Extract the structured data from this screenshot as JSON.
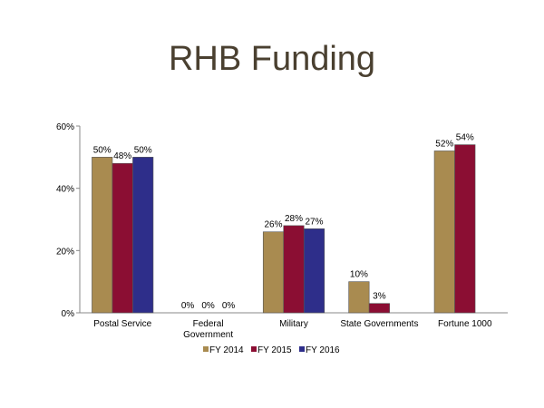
{
  "chart_data": {
    "type": "bar",
    "title": "RHB Funding",
    "xlabel": "",
    "ylabel": "",
    "ylim": [
      0,
      60
    ],
    "yticks": [
      "0%",
      "20%",
      "40%",
      "60%"
    ],
    "ytick_values": [
      0,
      20,
      40,
      60
    ],
    "categories": [
      [
        "Postal Service"
      ],
      [
        "Federal",
        "Government"
      ],
      [
        "Military"
      ],
      [
        "State Governments"
      ],
      [
        "Fortune 1000"
      ]
    ],
    "series": [
      {
        "name": "FY 2014",
        "color": "#a98b50",
        "values": [
          50,
          0,
          26,
          10,
          52
        ]
      },
      {
        "name": "FY 2015",
        "color": "#8b0e33",
        "values": [
          48,
          0,
          28,
          3,
          54
        ]
      },
      {
        "name": "FY 2016",
        "color": "#2e2e8a",
        "values": [
          50,
          0,
          27,
          null,
          null
        ]
      }
    ],
    "value_suffix": "%",
    "legend": "bottom",
    "grid": false
  }
}
